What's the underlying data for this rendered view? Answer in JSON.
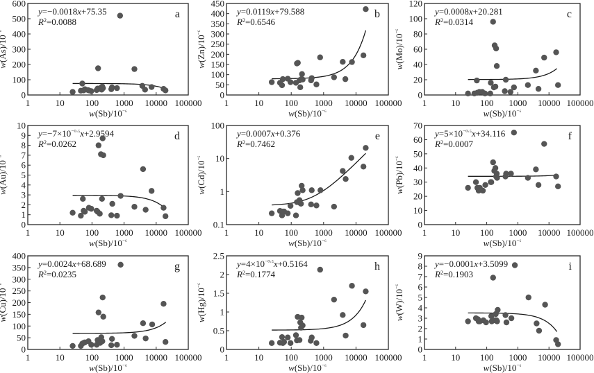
{
  "chart_data": [
    {
      "id": "a",
      "type": "scatter",
      "panel_letter": "a",
      "xlabel": "w(Sb)/10⁻⁶",
      "ylabel": "w(As)/10⁻⁶",
      "xscale": "log",
      "xlim": [
        1,
        100000
      ],
      "xticks": [
        1,
        10,
        100,
        1000,
        10000,
        100000
      ],
      "yscale": "linear",
      "ylim": [
        0,
        600
      ],
      "yticks": [
        0,
        100,
        200,
        300,
        400,
        500,
        600
      ],
      "equation": "y=−0.0018x+75.35",
      "r2": "R²=0.0088",
      "trendline": {
        "type": "linear",
        "slope": -0.0018,
        "intercept": 75.35,
        "x_range": [
          25,
          17000
        ]
      },
      "points": [
        [
          25,
          20
        ],
        [
          45,
          28
        ],
        [
          50,
          75
        ],
        [
          55,
          30
        ],
        [
          60,
          38
        ],
        [
          75,
          32
        ],
        [
          80,
          30
        ],
        [
          95,
          25
        ],
        [
          140,
          32
        ],
        [
          150,
          42
        ],
        [
          155,
          175
        ],
        [
          170,
          40
        ],
        [
          190,
          48
        ],
        [
          200,
          35
        ],
        [
          210,
          55
        ],
        [
          220,
          45
        ],
        [
          400,
          38
        ],
        [
          420,
          50
        ],
        [
          600,
          45
        ],
        [
          750,
          520
        ],
        [
          2100,
          170
        ],
        [
          3700,
          60
        ],
        [
          4500,
          35
        ],
        [
          7200,
          52
        ],
        [
          17000,
          40
        ],
        [
          19500,
          30
        ]
      ]
    },
    {
      "id": "b",
      "type": "scatter",
      "panel_letter": "b",
      "xlabel": "w(Sb)/10⁻⁶",
      "ylabel": "w(Zn)/10⁻⁶",
      "xscale": "log",
      "xlim": [
        1,
        100000
      ],
      "xticks": [
        1,
        10,
        100,
        1000,
        10000,
        100000
      ],
      "yscale": "linear",
      "ylim": [
        0,
        450
      ],
      "yticks": [
        0,
        50,
        100,
        150,
        200,
        250,
        300,
        350,
        400,
        450
      ],
      "equation": "y=0.0119x+79.588",
      "r2": "R²=0.6546",
      "trendline": {
        "type": "linear",
        "slope": 0.0119,
        "intercept": 79.588,
        "x_range": [
          25,
          20000
        ]
      },
      "points": [
        [
          25,
          63
        ],
        [
          45,
          60
        ],
        [
          52,
          48
        ],
        [
          55,
          78
        ],
        [
          78,
          80
        ],
        [
          95,
          63
        ],
        [
          140,
          60
        ],
        [
          150,
          155
        ],
        [
          160,
          158
        ],
        [
          180,
          72
        ],
        [
          190,
          38
        ],
        [
          205,
          78
        ],
        [
          215,
          103
        ],
        [
          225,
          76
        ],
        [
          410,
          72
        ],
        [
          430,
          83
        ],
        [
          600,
          52
        ],
        [
          780,
          185
        ],
        [
          2100,
          87
        ],
        [
          3900,
          163
        ],
        [
          4700,
          78
        ],
        [
          7500,
          162
        ],
        [
          17000,
          195
        ],
        [
          20000,
          422
        ]
      ]
    },
    {
      "id": "c",
      "type": "scatter",
      "panel_letter": "c",
      "xlabel": "w(Sb)/10⁻⁶",
      "ylabel": "w(Mo)/10⁻⁶",
      "xscale": "log",
      "xlim": [
        1,
        100000
      ],
      "xticks": [
        1,
        10,
        100,
        1000,
        10000,
        100000
      ],
      "yscale": "linear",
      "ylim": [
        0,
        120
      ],
      "yticks": [
        0,
        20,
        40,
        60,
        80,
        100,
        120
      ],
      "equation": "y=0.0008x+20.281",
      "r2": "R²=0.0314",
      "trendline": {
        "type": "linear",
        "slope": 0.0008,
        "intercept": 20.281,
        "x_range": [
          25,
          18000
        ]
      },
      "points": [
        [
          25,
          2
        ],
        [
          40,
          2
        ],
        [
          48,
          19
        ],
        [
          50,
          3
        ],
        [
          58,
          4
        ],
        [
          72,
          4
        ],
        [
          88,
          2
        ],
        [
          130,
          2
        ],
        [
          135,
          16
        ],
        [
          160,
          96
        ],
        [
          170,
          10
        ],
        [
          180,
          65
        ],
        [
          190,
          11
        ],
        [
          200,
          61
        ],
        [
          210,
          38
        ],
        [
          380,
          5
        ],
        [
          410,
          20
        ],
        [
          580,
          4
        ],
        [
          750,
          10
        ],
        [
          2100,
          13
        ],
        [
          3800,
          32
        ],
        [
          4600,
          8
        ],
        [
          7000,
          49
        ],
        [
          17000,
          56
        ],
        [
          19500,
          13
        ]
      ]
    },
    {
      "id": "d",
      "type": "scatter",
      "panel_letter": "d",
      "xlabel": "w(Sb)/10⁻⁶",
      "ylabel": "w(Au)/10⁻⁹",
      "xscale": "log",
      "xlim": [
        1,
        100000
      ],
      "xticks": [
        1,
        10,
        100,
        1000,
        10000,
        100000
      ],
      "yscale": "linear",
      "ylim": [
        0,
        10
      ],
      "yticks": [
        0,
        1,
        2,
        3,
        4,
        5,
        6,
        7,
        8,
        9,
        10
      ],
      "equation": "y=−7×10⁻⁰·⁵x+2.9594",
      "r2": "R²=0.0262",
      "trendline": {
        "type": "linear",
        "slope": -7e-05,
        "intercept": 2.9594,
        "x_range": [
          25,
          18000
        ]
      },
      "points": [
        [
          25,
          1.2
        ],
        [
          45,
          0.9
        ],
        [
          52,
          2.6
        ],
        [
          55,
          1.4
        ],
        [
          60,
          1.3
        ],
        [
          80,
          1.7
        ],
        [
          95,
          1.6
        ],
        [
          140,
          1.4
        ],
        [
          150,
          1.3
        ],
        [
          160,
          8.0
        ],
        [
          175,
          1.1
        ],
        [
          190,
          7.1
        ],
        [
          205,
          2.6
        ],
        [
          215,
          8.7
        ],
        [
          225,
          7.0
        ],
        [
          400,
          0.95
        ],
        [
          430,
          2.1
        ],
        [
          600,
          0.9
        ],
        [
          780,
          2.9
        ],
        [
          2100,
          1.8
        ],
        [
          3900,
          5.6
        ],
        [
          4700,
          1.5
        ],
        [
          7200,
          3.4
        ],
        [
          17000,
          1.7
        ],
        [
          19500,
          0.85
        ]
      ]
    },
    {
      "id": "e",
      "type": "scatter",
      "panel_letter": "e",
      "xlabel": "w(Sb)/10⁻⁶",
      "ylabel": "w(Cd)/10⁻⁶",
      "xscale": "log",
      "xlim": [
        1,
        100000
      ],
      "xticks": [
        1,
        10,
        100,
        1000,
        10000,
        100000
      ],
      "yscale": "log",
      "ylim": [
        0.1,
        100
      ],
      "yticks": [
        0.1,
        1,
        10,
        100
      ],
      "equation": "y=0.0007x+0.376",
      "r2": "R²=0.7462",
      "trendline": {
        "type": "linear",
        "slope": 0.0007,
        "intercept": 0.376,
        "x_range": [
          25,
          20000
        ]
      },
      "points": [
        [
          25,
          0.22
        ],
        [
          45,
          0.26
        ],
        [
          52,
          0.19
        ],
        [
          55,
          0.25
        ],
        [
          60,
          0.25
        ],
        [
          78,
          0.22
        ],
        [
          95,
          0.37
        ],
        [
          140,
          0.19
        ],
        [
          150,
          0.48
        ],
        [
          158,
          0.9
        ],
        [
          180,
          0.55
        ],
        [
          190,
          0.45
        ],
        [
          200,
          0.43
        ],
        [
          210,
          1.5
        ],
        [
          225,
          1.1
        ],
        [
          410,
          0.41
        ],
        [
          430,
          1.1
        ],
        [
          600,
          0.38
        ],
        [
          800,
          1.1
        ],
        [
          2100,
          0.35
        ],
        [
          3900,
          4.2
        ],
        [
          4800,
          2.4
        ],
        [
          7200,
          10.5
        ],
        [
          17000,
          5.7
        ],
        [
          20000,
          21
        ]
      ]
    },
    {
      "id": "f",
      "type": "scatter",
      "panel_letter": "f",
      "xlabel": "w(Sb)/10⁻⁶",
      "ylabel": "w(Pb)/10⁻⁶",
      "xscale": "log",
      "xlim": [
        1,
        100000
      ],
      "xticks": [
        1,
        10,
        100,
        1000,
        10000,
        100000
      ],
      "yscale": "linear",
      "ylim": [
        0,
        70
      ],
      "yticks": [
        0,
        10,
        20,
        30,
        40,
        50,
        60,
        70
      ],
      "equation": "y=5×10⁻⁰·⁵x+34.116",
      "r2": "R²=0.0007",
      "trendline": {
        "type": "linear",
        "slope": 5e-05,
        "intercept": 34.116,
        "x_range": [
          25,
          18000
        ]
      },
      "points": [
        [
          25,
          26
        ],
        [
          45,
          30
        ],
        [
          50,
          26
        ],
        [
          55,
          24
        ],
        [
          60,
          26
        ],
        [
          75,
          24
        ],
        [
          90,
          28
        ],
        [
          135,
          30
        ],
        [
          140,
          30
        ],
        [
          160,
          44
        ],
        [
          175,
          38
        ],
        [
          190,
          40
        ],
        [
          200,
          34
        ],
        [
          210,
          36
        ],
        [
          215,
          33
        ],
        [
          400,
          34
        ],
        [
          420,
          36
        ],
        [
          600,
          36
        ],
        [
          750,
          65
        ],
        [
          2100,
          33
        ],
        [
          3800,
          39
        ],
        [
          4600,
          28
        ],
        [
          7000,
          57
        ],
        [
          17000,
          34
        ],
        [
          19500,
          27
        ]
      ]
    },
    {
      "id": "g",
      "type": "scatter",
      "panel_letter": "g",
      "xlabel": "w(Sb)/10⁻⁶",
      "ylabel": "w(Cu)/10⁻⁶",
      "xscale": "log",
      "xlim": [
        1,
        100000
      ],
      "xticks": [
        1,
        10,
        100,
        1000,
        10000,
        100000
      ],
      "yscale": "linear",
      "ylim": [
        0,
        400
      ],
      "yticks": [
        0,
        50,
        100,
        150,
        200,
        250,
        300,
        350,
        400
      ],
      "equation": "y=0.0024x+68.689",
      "r2": "R²=0.0235",
      "trendline": {
        "type": "linear",
        "slope": 0.0024,
        "intercept": 68.689,
        "x_range": [
          25,
          20000
        ]
      },
      "points": [
        [
          25,
          15
        ],
        [
          45,
          15
        ],
        [
          50,
          25
        ],
        [
          55,
          28
        ],
        [
          60,
          30
        ],
        [
          78,
          35
        ],
        [
          95,
          20
        ],
        [
          140,
          20
        ],
        [
          150,
          40
        ],
        [
          160,
          158
        ],
        [
          180,
          28
        ],
        [
          195,
          52
        ],
        [
          210,
          35
        ],
        [
          215,
          222
        ],
        [
          225,
          140
        ],
        [
          400,
          18
        ],
        [
          420,
          45
        ],
        [
          600,
          20
        ],
        [
          780,
          362
        ],
        [
          2100,
          58
        ],
        [
          3900,
          112
        ],
        [
          4700,
          47
        ],
        [
          7500,
          107
        ],
        [
          17000,
          195
        ],
        [
          19500,
          32
        ]
      ]
    },
    {
      "id": "h",
      "type": "scatter",
      "panel_letter": "h",
      "xlabel": "w(Sb)/10⁻⁶",
      "ylabel": "w(Hg)/10⁻⁶",
      "xscale": "log",
      "xlim": [
        1,
        100000
      ],
      "xticks": [
        1,
        10,
        100,
        1000,
        10000,
        100000
      ],
      "yscale": "linear",
      "ylim": [
        0,
        2.5
      ],
      "yticks": [
        0,
        0.5,
        1,
        1.5,
        2,
        2.5
      ],
      "equation": "y=4×10⁻⁰·⁵x+0.5164",
      "r2": "R²=0.1774",
      "trendline": {
        "type": "linear",
        "slope": 4e-05,
        "intercept": 0.5164,
        "x_range": [
          25,
          20000
        ]
      },
      "points": [
        [
          25,
          0.17
        ],
        [
          45,
          0.18
        ],
        [
          52,
          0.33
        ],
        [
          55,
          0.17
        ],
        [
          60,
          0.2
        ],
        [
          78,
          0.32
        ],
        [
          95,
          0.17
        ],
        [
          140,
          0.38
        ],
        [
          150,
          0.24
        ],
        [
          158,
          0.87
        ],
        [
          180,
          0.25
        ],
        [
          190,
          0.72
        ],
        [
          200,
          0.58
        ],
        [
          210,
          0.85
        ],
        [
          225,
          0.64
        ],
        [
          400,
          0.23
        ],
        [
          430,
          0.32
        ],
        [
          600,
          0.17
        ],
        [
          780,
          2.13
        ],
        [
          2100,
          1.33
        ],
        [
          3900,
          0.92
        ],
        [
          4800,
          0.37
        ],
        [
          7500,
          1.7
        ],
        [
          17000,
          0.65
        ],
        [
          20000,
          1.55
        ]
      ]
    },
    {
      "id": "i",
      "type": "scatter",
      "panel_letter": "i",
      "xlabel": "w(Sb)/10⁻⁶",
      "ylabel": "w(W)/10⁻⁶",
      "xscale": "log",
      "xlim": [
        1,
        100000
      ],
      "xticks": [
        1,
        10,
        100,
        1000,
        10000,
        100000
      ],
      "yscale": "linear",
      "ylim": [
        0,
        9
      ],
      "yticks": [
        0,
        1,
        2,
        3,
        4,
        5,
        6,
        7,
        8,
        9
      ],
      "equation": "y=−0.0001x+3.5099",
      "r2": "R²=0.1903",
      "trendline": {
        "type": "linear",
        "slope": -0.0001,
        "intercept": 3.5099,
        "x_range": [
          25,
          18000
        ]
      },
      "points": [
        [
          25,
          2.7
        ],
        [
          45,
          3.0
        ],
        [
          52,
          2.9
        ],
        [
          55,
          2.7
        ],
        [
          60,
          2.7
        ],
        [
          78,
          2.8
        ],
        [
          95,
          2.6
        ],
        [
          140,
          3.2
        ],
        [
          145,
          2.7
        ],
        [
          160,
          6.9
        ],
        [
          185,
          2.8
        ],
        [
          195,
          3.4
        ],
        [
          205,
          2.8
        ],
        [
          215,
          2.7
        ],
        [
          225,
          3.8
        ],
        [
          400,
          3.3
        ],
        [
          430,
          2.6
        ],
        [
          620,
          3.0
        ],
        [
          800,
          8.1
        ],
        [
          2200,
          5.0
        ],
        [
          4000,
          2.5
        ],
        [
          4800,
          1.8
        ],
        [
          7500,
          4.3
        ],
        [
          17000,
          0.9
        ],
        [
          19500,
          0.5
        ]
      ]
    }
  ]
}
